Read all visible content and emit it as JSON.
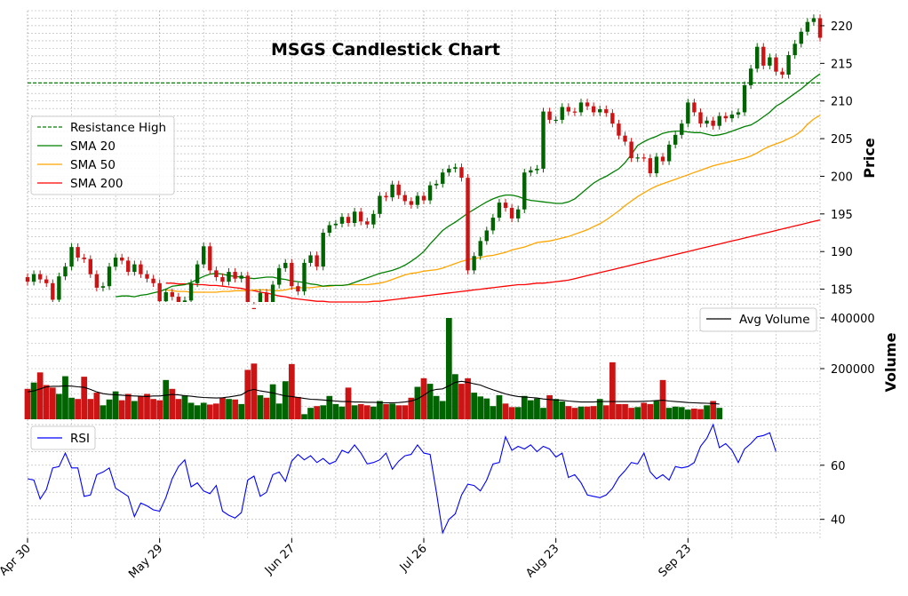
{
  "chart_data": {
    "type": "candlestick",
    "title": "MSGS Candlestick Chart",
    "x_tick_labels": [
      "Apr 30",
      "May 29",
      "Jun 27",
      "Jul 26",
      "Aug 23",
      "Sep 23"
    ],
    "x_tick_indices": [
      0,
      21,
      42,
      63,
      84,
      105
    ],
    "colors": {
      "up": "#006400",
      "down": "#cc1414",
      "grid": "#b0b0b0",
      "resistance": "#008000",
      "sma20": "#008000",
      "sma50": "#ffa500",
      "sma200": "#ff0000",
      "avg_volume": "#000000",
      "rsi": "#0000ff"
    },
    "price_panel": {
      "ylabel": "Price",
      "ylim": [
        183.3,
        222
      ],
      "yticks": [
        185,
        190,
        195,
        200,
        205,
        210,
        215,
        220
      ],
      "legend": [
        "Resistance High",
        "SMA 20",
        "SMA 50",
        "SMA 200"
      ],
      "resistance_high": 212.4,
      "closes": [
        186.0,
        187.0,
        186.3,
        185.8,
        183.6,
        186.7,
        188.0,
        190.6,
        189.2,
        189.0,
        187.0,
        185.2,
        185.4,
        188.0,
        189.2,
        188.8,
        187.3,
        188.3,
        187.0,
        186.4,
        185.8,
        183.4,
        184.6,
        184.0,
        182.8,
        183.5,
        185.8,
        188.3,
        190.7,
        187.5,
        186.6,
        186.0,
        187.3,
        186.4,
        186.8,
        182.5,
        182.3,
        184.5,
        182.4,
        185.6,
        187.8,
        188.5,
        185.4,
        184.7,
        188.5,
        189.5,
        188.0,
        192.5,
        193.5,
        193.7,
        194.6,
        193.8,
        195.3,
        194.0,
        193.6,
        195.0,
        197.4,
        197.2,
        198.9,
        197.5,
        196.7,
        196.2,
        197.4,
        196.8,
        198.8,
        199.0,
        200.5,
        201.0,
        201.2,
        199.8,
        187.5,
        189.4,
        191.4,
        192.8,
        194.5,
        196.5,
        195.8,
        194.4,
        195.6,
        200.5,
        200.8,
        201.0,
        208.6,
        207.5,
        207.5,
        209.2,
        208.6,
        208.5,
        209.8,
        209.3,
        208.5,
        208.9,
        208.4,
        207.0,
        205.4,
        204.6,
        202.4,
        202.5,
        202.4,
        200.4,
        202.6,
        202.0,
        204.2,
        205.5,
        207.0,
        209.8,
        208.5,
        207.0,
        207.4,
        206.7,
        208.0,
        207.7,
        208.2,
        208.5,
        212.1,
        214.3,
        217.2,
        214.7,
        215.8,
        213.9,
        213.5,
        216.1,
        217.6,
        219.2,
        220.5,
        221.0,
        218.4
      ],
      "sma20": [
        184.0,
        184.1,
        184.1,
        184.0,
        184.2,
        184.3,
        184.5,
        184.7,
        185.0,
        185.4,
        185.5,
        185.6,
        185.9,
        186.3,
        186.7,
        187.0,
        187.1,
        187.0,
        186.8,
        186.7,
        186.6,
        186.5,
        186.4,
        186.5,
        186.6,
        186.6,
        186.4,
        186.3,
        186.1,
        186.0,
        185.9,
        185.7,
        185.6,
        185.4,
        185.5,
        185.5,
        185.5,
        185.6,
        185.9,
        186.2,
        186.5,
        186.8,
        187.1,
        187.3,
        187.5,
        187.8,
        188.2,
        188.7,
        189.3,
        190.0,
        191.0,
        191.9,
        192.8,
        193.4,
        193.9,
        194.5,
        195.1,
        195.6,
        196.1,
        196.6,
        197.0,
        197.3,
        197.5,
        197.5,
        197.3,
        197.0,
        196.8,
        196.7,
        196.6,
        196.5,
        196.4,
        196.4,
        196.6,
        197.0,
        197.7,
        198.4,
        199.1,
        199.6,
        200.0,
        200.5,
        201.0,
        201.8,
        202.9,
        204.1,
        204.6,
        205.0,
        205.3,
        205.7,
        205.9,
        206.0,
        206.0,
        205.9,
        205.8,
        205.8,
        205.6,
        205.4,
        205.5,
        205.7,
        206.0,
        206.3,
        206.6,
        206.8,
        207.3,
        207.9,
        208.5,
        209.3,
        209.8,
        210.4,
        211.0,
        211.6,
        212.3,
        213.0,
        213.6
      ],
      "sma50": [
        184.9,
        184.8,
        184.7,
        184.7,
        184.6,
        184.6,
        184.6,
        184.6,
        184.6,
        184.7,
        184.7,
        184.8,
        184.8,
        184.8,
        184.9,
        184.9,
        184.9,
        184.8,
        184.8,
        184.9,
        185.1,
        185.2,
        185.2,
        185.2,
        185.3,
        185.4,
        185.4,
        185.5,
        185.5,
        185.6,
        185.6,
        185.6,
        185.6,
        185.7,
        185.8,
        186.0,
        186.3,
        186.6,
        186.9,
        187.1,
        187.2,
        187.4,
        187.5,
        187.6,
        187.8,
        188.1,
        188.4,
        188.7,
        188.9,
        189.1,
        189.2,
        189.4,
        189.5,
        189.7,
        189.9,
        190.2,
        190.4,
        190.6,
        190.9,
        191.2,
        191.3,
        191.4,
        191.6,
        191.8,
        192.0,
        192.3,
        192.6,
        192.9,
        193.3,
        193.7,
        194.2,
        194.8,
        195.4,
        196.1,
        196.7,
        197.3,
        197.8,
        198.3,
        198.7,
        199.0,
        199.3,
        199.6,
        199.9,
        200.2,
        200.5,
        200.8,
        201.1,
        201.4,
        201.6,
        201.8,
        202.0,
        202.2,
        202.4,
        202.7,
        203.1,
        203.6,
        204.0,
        204.3,
        204.6,
        205.0,
        205.4,
        206.0,
        206.9,
        207.6,
        208.1
      ],
      "sma200": [
        185.8,
        185.8,
        185.7,
        185.7,
        185.7,
        185.6,
        185.6,
        185.5,
        185.5,
        185.4,
        185.3,
        185.2,
        185.1,
        184.9,
        184.8,
        184.6,
        184.5,
        184.3,
        184.1,
        184.0,
        183.8,
        183.7,
        183.6,
        183.5,
        183.4,
        183.4,
        183.3,
        183.3,
        183.3,
        183.3,
        183.3,
        183.3,
        183.3,
        183.4,
        183.4,
        183.5,
        183.6,
        183.7,
        183.8,
        183.9,
        184.0,
        184.1,
        184.2,
        184.3,
        184.4,
        184.5,
        184.6,
        184.7,
        184.8,
        184.9,
        185.0,
        185.1,
        185.2,
        185.3,
        185.4,
        185.5,
        185.6,
        185.6,
        185.7,
        185.8,
        185.8,
        185.9,
        186.0,
        186.1,
        186.2,
        186.4,
        186.6,
        186.8,
        187.0,
        187.2,
        187.4,
        187.6,
        187.8,
        188.0,
        188.2,
        188.4,
        188.6,
        188.8,
        189.0,
        189.2,
        189.4,
        189.6,
        189.8,
        190.0,
        190.2,
        190.4,
        190.6,
        190.8,
        191.0,
        191.2,
        191.4,
        191.6,
        191.8,
        192.0,
        192.2,
        192.4,
        192.6,
        192.8,
        193.0,
        193.2,
        193.4,
        193.6,
        193.8,
        194.0,
        194.2
      ]
    },
    "volume_panel": {
      "ylabel": "Volume",
      "ylim": [
        0,
        400000
      ],
      "yticks": [
        200000,
        400000
      ],
      "legend": [
        "Avg Volume"
      ],
      "volumes": [
        120000,
        145000,
        185000,
        135000,
        125000,
        100000,
        170000,
        85000,
        80000,
        168000,
        80000,
        105000,
        55000,
        78000,
        110000,
        75000,
        100000,
        72000,
        90000,
        100000,
        80000,
        75000,
        155000,
        120000,
        80000,
        95000,
        65000,
        55000,
        65000,
        58000,
        62000,
        85000,
        80000,
        78000,
        60000,
        195000,
        220000,
        95000,
        85000,
        138000,
        62000,
        150000,
        218000,
        88000,
        20000,
        45000,
        52000,
        55000,
        92000,
        60000,
        50000,
        125000,
        55000,
        60000,
        55000,
        50000,
        72000,
        60000,
        62000,
        55000,
        55000,
        85000,
        128000,
        162000,
        140000,
        92000,
        72000,
        400000,
        178000,
        140000,
        162000,
        105000,
        90000,
        82000,
        52000,
        95000,
        62000,
        48000,
        48000,
        92000,
        75000,
        82000,
        45000,
        95000,
        80000,
        70000,
        52000,
        45000,
        50000,
        50000,
        52000,
        80000,
        55000,
        225000,
        60000,
        60000,
        45000,
        48000,
        65000,
        60000,
        72000,
        155000,
        45000,
        50000,
        48000,
        38000,
        42000,
        40000,
        55000,
        72000,
        45000
      ],
      "avg_volume": [
        108000,
        112000,
        120000,
        128000,
        130000,
        130000,
        132000,
        131000,
        128000,
        126000,
        118000,
        108000,
        101000,
        98000,
        97000,
        95000,
        93000,
        92000,
        91000,
        90000,
        92000,
        92000,
        95000,
        98000,
        96000,
        93000,
        91000,
        88000,
        86000,
        85000,
        84000,
        85000,
        88000,
        92000,
        96000,
        112000,
        118000,
        112000,
        108000,
        104000,
        98000,
        92000,
        90000,
        86000,
        82000,
        79000,
        78000,
        76000,
        74000,
        72000,
        70000,
        70000,
        68000,
        68000,
        67000,
        67000,
        66000,
        65000,
        65000,
        66000,
        68000,
        72000,
        80000,
        95000,
        112000,
        118000,
        120000,
        132000,
        146000,
        150000,
        146000,
        140000,
        135000,
        125000,
        116000,
        108000,
        100000,
        94000,
        90000,
        88000,
        86000,
        84000,
        80000,
        78000,
        76000,
        75000,
        72000,
        70000,
        68000,
        68000,
        68000,
        70000,
        70000,
        70000,
        70000,
        70000,
        70000,
        70000,
        71000,
        72000,
        74000,
        75000,
        72000,
        70000,
        68000,
        66000,
        65000,
        64000,
        63000,
        62000,
        60000
      ]
    },
    "rsi_panel": {
      "ylabel": "",
      "ylim": [
        33,
        77
      ],
      "yticks": [
        40,
        60
      ],
      "legend": [
        "RSI"
      ],
      "rsi": [
        55.0,
        54.5,
        47.5,
        51.0,
        59.0,
        59.5,
        64.5,
        59.0,
        59.0,
        48.5,
        49.0,
        56.5,
        57.5,
        59.0,
        51.5,
        50.0,
        48.5,
        41.0,
        46.0,
        45.0,
        43.5,
        43.0,
        48.0,
        55.0,
        59.5,
        62.0,
        52.0,
        53.5,
        50.5,
        49.5,
        52.5,
        43.0,
        41.5,
        40.5,
        42.5,
        54.5,
        56.0,
        48.5,
        50.0,
        56.5,
        57.5,
        54.0,
        61.5,
        64.0,
        62.0,
        63.5,
        61.0,
        62.5,
        60.5,
        61.5,
        65.5,
        64.5,
        67.5,
        64.5,
        60.5,
        61.0,
        62.0,
        64.5,
        58.5,
        61.5,
        63.5,
        64.0,
        67.5,
        64.5,
        64.0,
        50.0,
        35.0,
        40.0,
        42.0,
        49.0,
        53.0,
        52.5,
        50.5,
        54.5,
        60.5,
        61.0,
        70.5,
        65.5,
        67.0,
        66.0,
        67.5,
        65.0,
        67.0,
        66.0,
        63.0,
        64.5,
        55.5,
        56.5,
        53.5,
        49.0,
        48.5,
        48.0,
        49.0,
        51.5,
        55.5,
        58.0,
        61.0,
        60.5,
        64.5,
        57.5,
        55.0,
        56.5,
        54.5,
        59.5,
        59.0,
        59.5,
        61.0,
        67.0,
        70.0,
        75.0,
        66.5,
        68.0,
        65.5,
        61.0,
        66.0,
        68.0,
        70.5,
        71.0,
        72.0,
        65.0
      ]
    }
  }
}
